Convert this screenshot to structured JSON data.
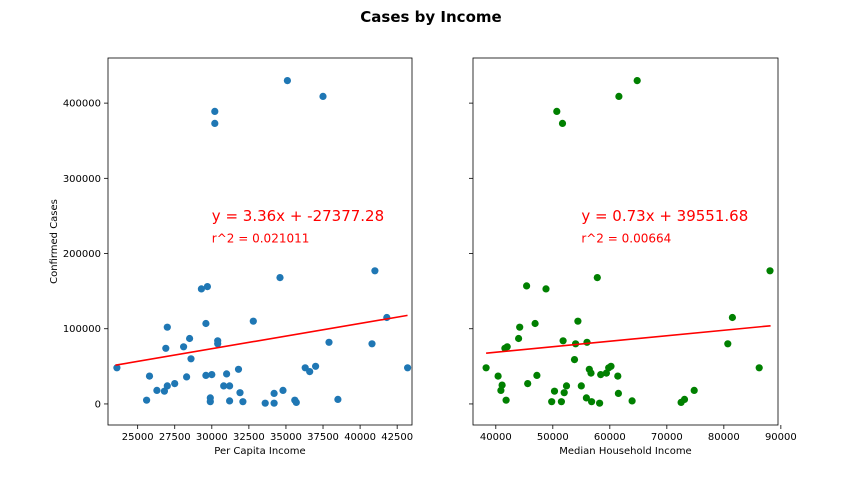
{
  "figure": {
    "title": "Cases by Income"
  },
  "chart_data": [
    {
      "type": "scatter",
      "xlabel": "Per Capita Income",
      "ylabel": "Confirmed Cases",
      "xlim": [
        23000,
        43500
      ],
      "ylim": [
        -28000,
        460000
      ],
      "xticks": [
        25000,
        27500,
        30000,
        32500,
        35000,
        37500,
        40000,
        42500
      ],
      "yticks": [
        0,
        100000,
        200000,
        300000,
        400000
      ],
      "point_color": "#1f77b4",
      "regression": {
        "slope": 3.36,
        "intercept": -27377.28,
        "x_range": [
          23500,
          43200
        ],
        "color": "#ff0000",
        "equation": "y = 3.36x + -27377.28",
        "r2_label": "r^2 = 0.021011",
        "annotation_position": [
          30000,
          250000
        ],
        "r2_position": [
          30000,
          220000
        ]
      },
      "points": [
        [
          23600,
          48000
        ],
        [
          25600,
          5000
        ],
        [
          25800,
          37000
        ],
        [
          26300,
          18000
        ],
        [
          26800,
          17000
        ],
        [
          26900,
          74000
        ],
        [
          27000,
          102000
        ],
        [
          27000,
          24000
        ],
        [
          27500,
          27000
        ],
        [
          28100,
          76000
        ],
        [
          28300,
          36000
        ],
        [
          28500,
          87000
        ],
        [
          28600,
          60000
        ],
        [
          29300,
          153000
        ],
        [
          29600,
          38000
        ],
        [
          29600,
          107000
        ],
        [
          29700,
          156000
        ],
        [
          29900,
          3000
        ],
        [
          29900,
          8000
        ],
        [
          30000,
          39000
        ],
        [
          30200,
          373000
        ],
        [
          30200,
          389000
        ],
        [
          30400,
          84000
        ],
        [
          30400,
          80000
        ],
        [
          30800,
          24000
        ],
        [
          31000,
          40000
        ],
        [
          31200,
          4000
        ],
        [
          31200,
          24000
        ],
        [
          31800,
          46000
        ],
        [
          31900,
          15000
        ],
        [
          32100,
          3000
        ],
        [
          32800,
          110000
        ],
        [
          33600,
          1000
        ],
        [
          34200,
          1000
        ],
        [
          34200,
          14000
        ],
        [
          34600,
          168000
        ],
        [
          34800,
          18000
        ],
        [
          35100,
          430000
        ],
        [
          35600,
          5000
        ],
        [
          35700,
          2000
        ],
        [
          36300,
          48000
        ],
        [
          36600,
          43000
        ],
        [
          37000,
          50000
        ],
        [
          37500,
          409000
        ],
        [
          37900,
          82000
        ],
        [
          38500,
          6000
        ],
        [
          40800,
          80000
        ],
        [
          41000,
          177000
        ],
        [
          41800,
          115000
        ],
        [
          43200,
          48000
        ]
      ]
    },
    {
      "type": "scatter",
      "xlabel": "Median Household Income",
      "ylabel": "",
      "xlim": [
        36000,
        89500
      ],
      "ylim": [
        -28000,
        460000
      ],
      "xticks": [
        40000,
        50000,
        60000,
        70000,
        80000,
        90000
      ],
      "yticks": [
        0,
        100000,
        200000,
        300000,
        400000
      ],
      "point_color": "#008000",
      "regression": {
        "slope": 0.73,
        "intercept": 39551.68,
        "x_range": [
          38300,
          88200
        ],
        "color": "#ff0000",
        "equation": "y = 0.73x + 39551.68",
        "r2_label": "r^2 = 0.00664",
        "annotation_position": [
          55000,
          250000
        ],
        "r2_position": [
          55000,
          220000
        ]
      },
      "points": [
        [
          38300,
          48000
        ],
        [
          40400,
          37000
        ],
        [
          40900,
          18000
        ],
        [
          41100,
          25000
        ],
        [
          41600,
          74000
        ],
        [
          41800,
          5000
        ],
        [
          42000,
          76000
        ],
        [
          44000,
          87000
        ],
        [
          44200,
          102000
        ],
        [
          45400,
          157000
        ],
        [
          45600,
          27000
        ],
        [
          46900,
          107000
        ],
        [
          47200,
          38000
        ],
        [
          48800,
          153000
        ],
        [
          49800,
          3000
        ],
        [
          50300,
          17000
        ],
        [
          50700,
          389000
        ],
        [
          51500,
          3000
        ],
        [
          51700,
          373000
        ],
        [
          51800,
          84000
        ],
        [
          52000,
          15000
        ],
        [
          52400,
          24000
        ],
        [
          53800,
          59000
        ],
        [
          54000,
          80000
        ],
        [
          54400,
          110000
        ],
        [
          55000,
          24000
        ],
        [
          55900,
          8000
        ],
        [
          56000,
          82000
        ],
        [
          56400,
          46000
        ],
        [
          56700,
          41000
        ],
        [
          56800,
          3000
        ],
        [
          57800,
          168000
        ],
        [
          58200,
          1000
        ],
        [
          58400,
          39000
        ],
        [
          59400,
          41000
        ],
        [
          59800,
          48000
        ],
        [
          60200,
          50000
        ],
        [
          61400,
          37000
        ],
        [
          61500,
          14000
        ],
        [
          61600,
          409000
        ],
        [
          63900,
          4000
        ],
        [
          64800,
          430000
        ],
        [
          72500,
          2000
        ],
        [
          73100,
          6000
        ],
        [
          74800,
          18000
        ],
        [
          80700,
          80000
        ],
        [
          81500,
          115000
        ],
        [
          86200,
          48000
        ],
        [
          88100,
          177000
        ]
      ]
    }
  ]
}
